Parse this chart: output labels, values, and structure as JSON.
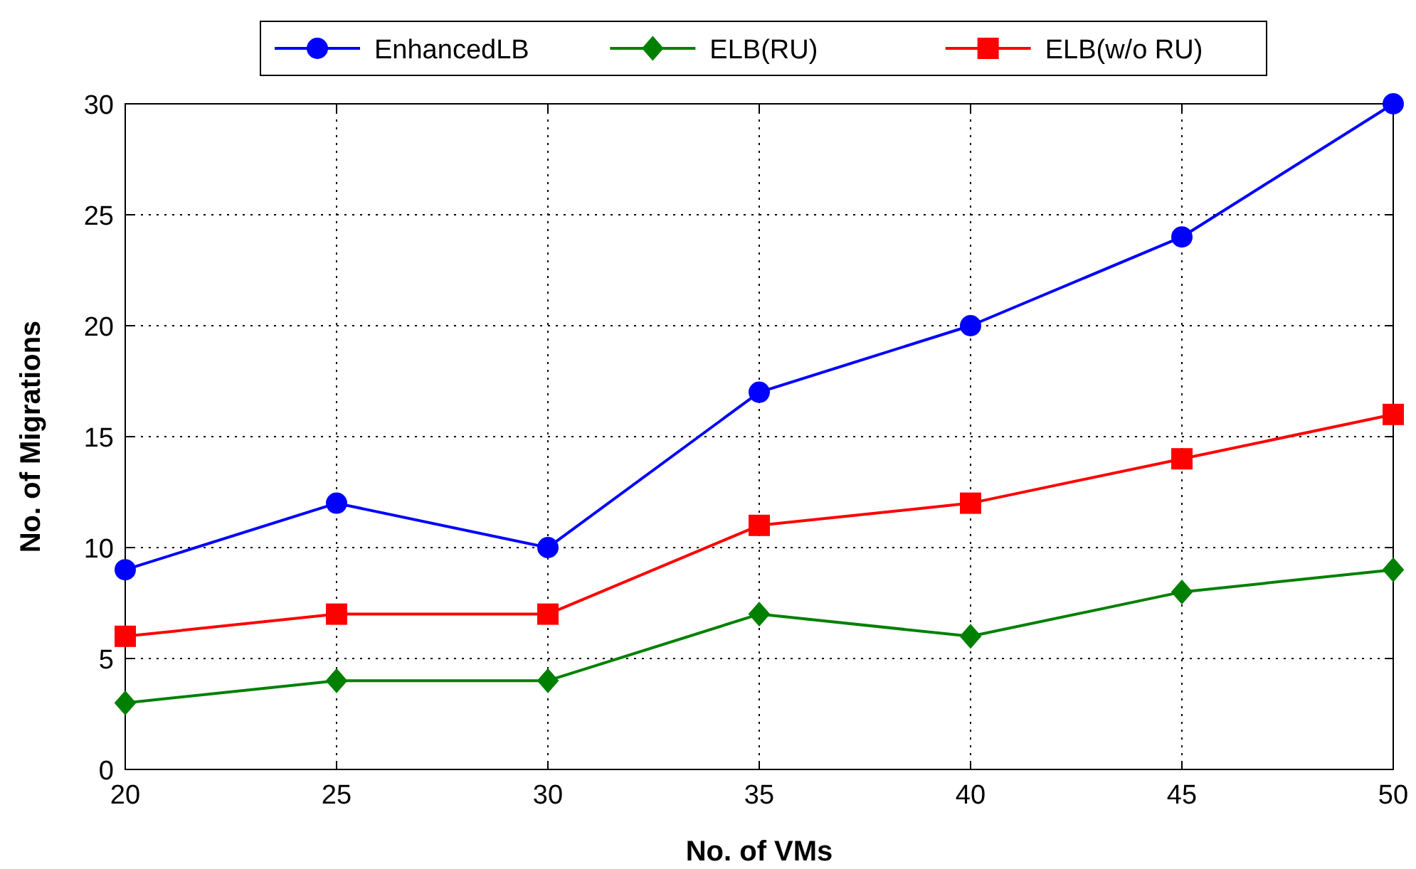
{
  "chart_data": {
    "type": "line",
    "xlabel": "No. of VMs",
    "ylabel": "No. of Migrations",
    "x": [
      20,
      25,
      30,
      35,
      40,
      45,
      50
    ],
    "series": [
      {
        "name": "EnhancedLB",
        "color": "#0000ff",
        "marker": "circle",
        "values": [
          9,
          12,
          10,
          17,
          20,
          24,
          30
        ]
      },
      {
        "name": "ELB(RU)",
        "color": "#008000",
        "marker": "diamond",
        "values": [
          3,
          4,
          4,
          7,
          6,
          8,
          9
        ]
      },
      {
        "name": "ELB(w/o RU)",
        "color": "#ff0000",
        "marker": "square",
        "values": [
          6,
          7,
          7,
          11,
          12,
          14,
          16
        ]
      }
    ],
    "xlim": [
      20,
      50
    ],
    "xticks": [
      20,
      25,
      30,
      35,
      40,
      45,
      50
    ],
    "ylim": [
      0,
      30
    ],
    "yticks": [
      0,
      5,
      10,
      15,
      20,
      25,
      30
    ],
    "grid": true,
    "legend": "top",
    "line_style": "solid"
  }
}
